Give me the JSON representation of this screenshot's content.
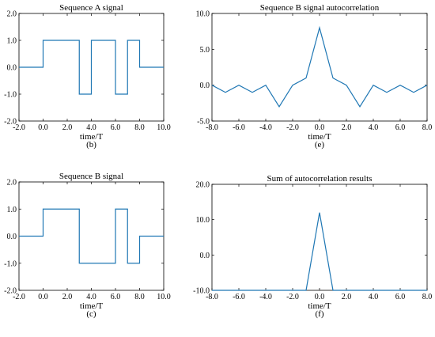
{
  "colors": {
    "series": "#1f77b4",
    "axis": "#000000"
  },
  "chart_data": [
    {
      "id": "b",
      "type": "line",
      "step": true,
      "title": "Sequence A signal",
      "xlabel": "time/T",
      "ylabel": "",
      "panel_label": "(b)",
      "xlim": [
        -2,
        10
      ],
      "ylim": [
        -2,
        2
      ],
      "xticks": [
        -2,
        0,
        2,
        4,
        6,
        8,
        10
      ],
      "yticks": [
        -2,
        -1,
        0,
        1,
        2
      ],
      "xtick_labels": [
        "-2.0",
        "0.0",
        "2.0",
        "4.0",
        "6.0",
        "8.0",
        "10.0"
      ],
      "ytick_labels": [
        "-2.0",
        "-1.0",
        "0.0",
        "1.0",
        "2.0"
      ],
      "series": [
        {
          "x": [
            -2,
            0,
            0,
            3,
            3,
            4,
            4,
            6,
            6,
            7,
            7,
            8,
            8,
            10
          ],
          "y": [
            0,
            0,
            1,
            1,
            -1,
            -1,
            1,
            1,
            -1,
            -1,
            1,
            1,
            0,
            0
          ]
        }
      ]
    },
    {
      "id": "e",
      "type": "line",
      "step": false,
      "title": "Sequence B signal autocorrelation",
      "xlabel": "time/T",
      "ylabel": "",
      "panel_label": "(e)",
      "xlim": [
        -8,
        8
      ],
      "ylim": [
        -5,
        10
      ],
      "xticks": [
        -8,
        -6,
        -4,
        -2,
        0,
        2,
        4,
        6,
        8
      ],
      "yticks": [
        -5,
        0,
        5,
        10
      ],
      "xtick_labels": [
        "-8.0",
        "-6.0",
        "-4.0",
        "-2.0",
        "0.0",
        "2.0",
        "4.0",
        "6.0",
        "8.0"
      ],
      "ytick_labels": [
        "-5.0",
        "0.0",
        "5.0",
        "10.0"
      ],
      "series": [
        {
          "x": [
            -8,
            -7,
            -6,
            -5,
            -4,
            -3,
            -2,
            -1,
            0,
            1,
            2,
            3,
            4,
            5,
            6,
            7,
            8
          ],
          "y": [
            0,
            -1,
            0,
            -1,
            0,
            -3,
            0,
            1,
            8,
            1,
            0,
            -3,
            0,
            -1,
            0,
            -1,
            0
          ]
        }
      ]
    },
    {
      "id": "c",
      "type": "line",
      "step": true,
      "title": "Sequence B signal",
      "xlabel": "time/T",
      "ylabel": "",
      "panel_label": "(c)",
      "xlim": [
        -2,
        10
      ],
      "ylim": [
        -2,
        2
      ],
      "xticks": [
        -2,
        0,
        2,
        4,
        6,
        8,
        10
      ],
      "yticks": [
        -2,
        -1,
        0,
        1,
        2
      ],
      "xtick_labels": [
        "-2.0",
        "0.0",
        "2.0",
        "4.0",
        "6.0",
        "8.0",
        "10.0"
      ],
      "ytick_labels": [
        "-2.0",
        "-1.0",
        "0.0",
        "1.0",
        "2.0"
      ],
      "series": [
        {
          "x": [
            -2,
            0,
            0,
            3,
            3,
            6,
            6,
            7,
            7,
            8,
            8,
            10
          ],
          "y": [
            0,
            0,
            1,
            1,
            -1,
            -1,
            1,
            1,
            -1,
            -1,
            0,
            0
          ]
        }
      ]
    },
    {
      "id": "f",
      "type": "line",
      "step": false,
      "title": "Sum of autocorrelation results",
      "xlabel": "time/T",
      "ylabel": "",
      "panel_label": "(f)",
      "xlim": [
        -8,
        8
      ],
      "ylim": [
        -10,
        20
      ],
      "xticks": [
        -8,
        -6,
        -4,
        -2,
        0,
        2,
        4,
        6,
        8
      ],
      "yticks": [
        -10,
        0,
        10,
        20
      ],
      "xtick_labels": [
        "-8.0",
        "-6.0",
        "-4.0",
        "-2.0",
        "0.0",
        "2.0",
        "4.0",
        "6.0",
        "8.0"
      ],
      "ytick_labels": [
        "-10.0",
        "0.0",
        "10.0",
        "20.0"
      ],
      "series": [
        {
          "x": [
            -8,
            -1,
            0,
            1,
            8
          ],
          "y": [
            -10,
            -10,
            12,
            -10,
            -10
          ]
        }
      ]
    }
  ]
}
